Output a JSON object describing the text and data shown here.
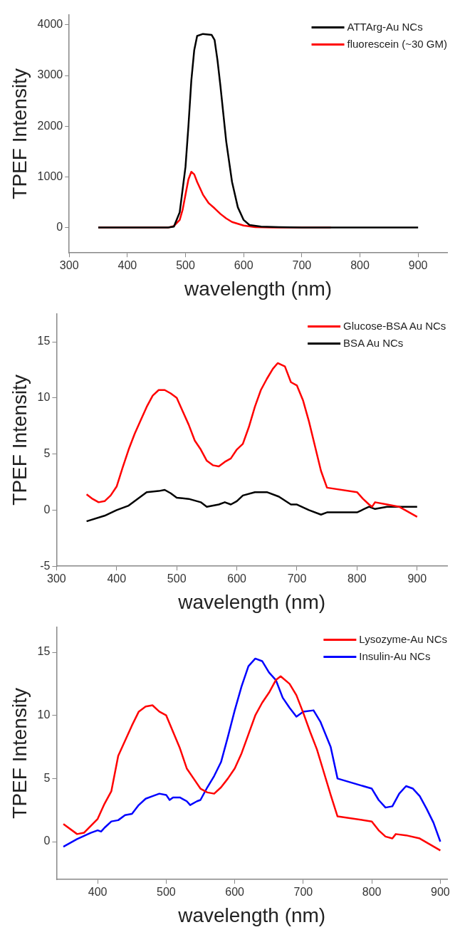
{
  "chart_data": [
    {
      "type": "line",
      "xlabel": "wavelength (nm)",
      "ylabel": "TPEF Intensity",
      "xlim": [
        300,
        950
      ],
      "xticks": [
        300,
        400,
        500,
        600,
        700,
        800,
        900
      ],
      "ylim": [
        -500,
        4200
      ],
      "yticks": [
        0,
        1000,
        2000,
        3000,
        4000
      ],
      "grid": false,
      "legend": "top right",
      "marker": "none",
      "line_style": "solid",
      "series": [
        {
          "name": "ATTArg-Au NCs",
          "color": "#000000",
          "x": [
            350,
            470,
            480,
            490,
            500,
            505,
            510,
            515,
            520,
            530,
            545,
            550,
            555,
            560,
            570,
            580,
            590,
            600,
            610,
            630,
            660,
            700,
            900
          ],
          "values": [
            0,
            0,
            20,
            300,
            1200,
            2000,
            2900,
            3500,
            3780,
            3820,
            3800,
            3700,
            3300,
            2800,
            1700,
            900,
            400,
            150,
            50,
            20,
            10,
            0,
            0
          ]
        },
        {
          "name": "fluorescein (~30 GM)",
          "color": "#ff0000",
          "x": [
            350,
            470,
            480,
            490,
            495,
            500,
            505,
            510,
            515,
            520,
            530,
            540,
            550,
            560,
            570,
            580,
            600,
            620,
            650,
            750
          ],
          "values": [
            0,
            0,
            30,
            150,
            350,
            650,
            950,
            1100,
            1050,
            900,
            650,
            480,
            380,
            270,
            180,
            110,
            40,
            10,
            0,
            0
          ]
        }
      ]
    },
    {
      "type": "line",
      "xlabel": "wavelength (nm)",
      "ylabel": "TPEF Intensity",
      "xlim": [
        300,
        950
      ],
      "xticks": [
        300,
        400,
        500,
        600,
        700,
        800,
        900
      ],
      "ylim": [
        -5,
        17.5
      ],
      "yticks": [
        -5,
        0,
        5,
        10,
        15
      ],
      "grid": false,
      "legend": "top right",
      "marker": "none",
      "line_style": "solid",
      "series": [
        {
          "name": "Glucose-BSA Au NCs",
          "color": "#ff0000",
          "x": [
            350,
            360,
            370,
            380,
            390,
            400,
            410,
            420,
            430,
            440,
            450,
            460,
            470,
            480,
            490,
            500,
            510,
            520,
            530,
            540,
            550,
            560,
            570,
            580,
            590,
            600,
            610,
            620,
            630,
            640,
            650,
            660,
            668,
            680,
            690,
            700,
            710,
            720,
            730,
            740,
            750,
            800,
            810,
            820,
            825,
            830,
            850,
            870,
            900
          ],
          "values": [
            1.4,
            1.0,
            0.7,
            0.8,
            1.3,
            2.1,
            3.8,
            5.4,
            6.8,
            8.0,
            9.2,
            10.2,
            10.7,
            10.7,
            10.4,
            10.0,
            8.8,
            7.6,
            6.2,
            5.4,
            4.4,
            4.0,
            3.9,
            4.3,
            4.6,
            5.4,
            5.9,
            7.4,
            9.2,
            10.7,
            11.7,
            12.6,
            13.1,
            12.8,
            11.4,
            11.1,
            9.8,
            7.9,
            5.7,
            3.5,
            2.0,
            1.6,
            1.0,
            0.5,
            0.3,
            0.7,
            0.5,
            0.3,
            -0.6
          ]
        },
        {
          "name": "BSA Au NCs",
          "color": "#000000",
          "x": [
            350,
            380,
            400,
            420,
            430,
            440,
            450,
            470,
            480,
            490,
            500,
            520,
            540,
            550,
            570,
            580,
            590,
            600,
            610,
            630,
            650,
            670,
            690,
            700,
            720,
            740,
            750,
            800,
            820,
            830,
            850,
            900
          ],
          "values": [
            -1.0,
            -0.5,
            0,
            0.4,
            0.8,
            1.2,
            1.6,
            1.7,
            1.8,
            1.5,
            1.1,
            1.0,
            0.7,
            0.3,
            0.5,
            0.7,
            0.5,
            0.8,
            1.3,
            1.6,
            1.6,
            1.2,
            0.5,
            0.5,
            0,
            -0.4,
            -0.2,
            -0.2,
            0.3,
            0.1,
            0.3,
            0.3
          ]
        }
      ]
    },
    {
      "type": "line",
      "xlabel": "wavelength (nm)",
      "ylabel": "TPEF Intensity",
      "xlim": [
        340,
        910
      ],
      "xticks": [
        400,
        500,
        600,
        700,
        800,
        900
      ],
      "ylim": [
        -3,
        17
      ],
      "yticks": [
        0,
        5,
        10,
        15
      ],
      "grid": false,
      "legend": "top right",
      "marker": "none",
      "line_style": "solid",
      "series": [
        {
          "name": "Lysozyme-Au NCs",
          "color": "#ff0000",
          "x": [
            350,
            370,
            380,
            400,
            410,
            420,
            430,
            440,
            450,
            460,
            470,
            480,
            490,
            500,
            510,
            520,
            530,
            540,
            550,
            560,
            570,
            580,
            590,
            600,
            610,
            620,
            630,
            640,
            650,
            660,
            667,
            680,
            690,
            700,
            710,
            720,
            730,
            740,
            750,
            800,
            810,
            820,
            830,
            835,
            850,
            870,
            900
          ],
          "values": [
            1.4,
            0.6,
            0.7,
            1.8,
            3.0,
            4.0,
            6.8,
            8.0,
            9.2,
            10.3,
            10.7,
            10.8,
            10.3,
            10.0,
            8.7,
            7.4,
            5.8,
            5.0,
            4.2,
            3.9,
            3.8,
            4.3,
            5.0,
            5.8,
            7.0,
            8.5,
            10.0,
            11.0,
            11.8,
            12.8,
            13.1,
            12.5,
            11.6,
            10.2,
            8.7,
            7.3,
            5.5,
            3.7,
            2.0,
            1.6,
            0.9,
            0.4,
            0.25,
            0.6,
            0.5,
            0.25,
            -0.7
          ]
        },
        {
          "name": "Insulin-Au NCs",
          "color": "#0000ff",
          "x": [
            350,
            370,
            390,
            400,
            405,
            410,
            420,
            430,
            440,
            450,
            460,
            470,
            480,
            490,
            500,
            505,
            510,
            520,
            530,
            535,
            545,
            550,
            560,
            570,
            580,
            590,
            600,
            610,
            620,
            630,
            640,
            650,
            660,
            670,
            680,
            690,
            700,
            715,
            725,
            740,
            750,
            800,
            810,
            820,
            830,
            840,
            850,
            860,
            870,
            880,
            890,
            900
          ],
          "values": [
            -0.4,
            0.2,
            0.7,
            0.9,
            0.8,
            1.1,
            1.6,
            1.7,
            2.1,
            2.2,
            2.9,
            3.4,
            3.6,
            3.8,
            3.7,
            3.3,
            3.5,
            3.5,
            3.2,
            2.9,
            3.2,
            3.3,
            4.3,
            5.2,
            6.3,
            8.3,
            10.4,
            12.3,
            13.9,
            14.5,
            14.3,
            13.4,
            12.8,
            11.4,
            10.6,
            9.9,
            10.3,
            10.4,
            9.5,
            7.5,
            5.0,
            4.2,
            3.3,
            2.7,
            2.8,
            3.8,
            4.4,
            4.2,
            3.6,
            2.6,
            1.5,
            0
          ]
        }
      ]
    }
  ]
}
